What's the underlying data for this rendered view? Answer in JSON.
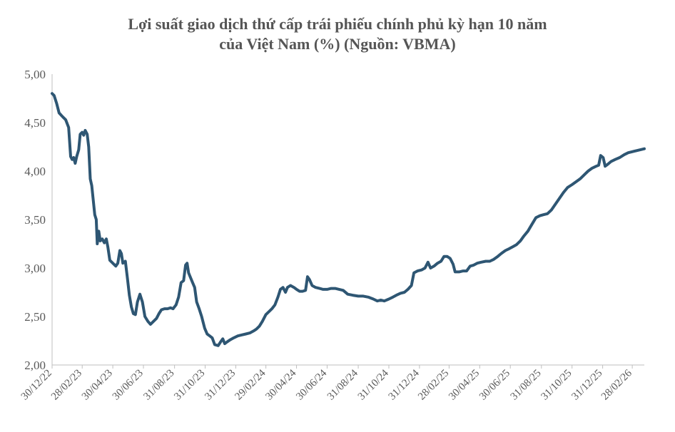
{
  "chart_data": {
    "type": "line",
    "title_line1": "Lợi suất giao dịch thứ cấp trái phiếu chính phủ kỳ hạn 10 năm",
    "title_line2": "của Việt Nam (%) (Nguồn: VBMA)",
    "xlabel": "",
    "ylabel": "",
    "ylim": [
      2.0,
      5.0
    ],
    "yticks": [
      "2,00",
      "2,50",
      "3,00",
      "3,50",
      "4,00",
      "4,50",
      "5,00"
    ],
    "ytick_values": [
      2.0,
      2.5,
      3.0,
      3.5,
      4.0,
      4.5,
      5.0
    ],
    "xticks": [
      "30/12/22",
      "28/02/23",
      "30/04/23",
      "30/06/23",
      "31/08/23",
      "31/10/23",
      "31/12/23",
      "29/02/24",
      "30/04/24",
      "30/06/24",
      "31/08/24",
      "31/10/24",
      "31/12/24",
      "28/02/25",
      "30/04/25",
      "30/06/25",
      "31/08/25",
      "31/10/25",
      "31/12/25",
      "28/02/26"
    ],
    "xtick_dates": [
      "2022-12-30",
      "2023-02-28",
      "2023-04-30",
      "2023-06-30",
      "2023-08-31",
      "2023-10-31",
      "2023-12-31",
      "2024-02-29",
      "2024-04-30",
      "2024-06-30",
      "2024-08-31",
      "2024-10-31",
      "2024-12-31",
      "2025-02-28",
      "2025-04-30",
      "2025-06-30",
      "2025-08-31",
      "2025-10-31",
      "2025-12-31",
      "2026-02-28"
    ],
    "grid": false,
    "line_color": "#2e5673",
    "series": [
      {
        "name": "",
        "points": [
          [
            "2022-12-30",
            4.8
          ],
          [
            "2023-01-03",
            4.78
          ],
          [
            "2023-01-08",
            4.7
          ],
          [
            "2023-01-13",
            4.6
          ],
          [
            "2023-01-20",
            4.56
          ],
          [
            "2023-01-26",
            4.53
          ],
          [
            "2023-02-01",
            4.45
          ],
          [
            "2023-02-05",
            4.15
          ],
          [
            "2023-02-08",
            4.12
          ],
          [
            "2023-02-11",
            4.14
          ],
          [
            "2023-02-14",
            4.08
          ],
          [
            "2023-02-17",
            4.15
          ],
          [
            "2023-02-21",
            4.22
          ],
          [
            "2023-02-24",
            4.38
          ],
          [
            "2023-02-28",
            4.4
          ],
          [
            "2023-03-03",
            4.37
          ],
          [
            "2023-03-06",
            4.42
          ],
          [
            "2023-03-10",
            4.38
          ],
          [
            "2023-03-13",
            4.25
          ],
          [
            "2023-03-16",
            3.92
          ],
          [
            "2023-03-19",
            3.85
          ],
          [
            "2023-03-22",
            3.7
          ],
          [
            "2023-03-25",
            3.55
          ],
          [
            "2023-03-28",
            3.5
          ],
          [
            "2023-03-30",
            3.25
          ],
          [
            "2023-04-02",
            3.38
          ],
          [
            "2023-04-05",
            3.28
          ],
          [
            "2023-04-09",
            3.3
          ],
          [
            "2023-04-13",
            3.26
          ],
          [
            "2023-04-17",
            3.3
          ],
          [
            "2023-04-20",
            3.22
          ],
          [
            "2023-04-24",
            3.08
          ],
          [
            "2023-04-30",
            3.05
          ],
          [
            "2023-05-06",
            3.02
          ],
          [
            "2023-05-10",
            3.05
          ],
          [
            "2023-05-14",
            3.18
          ],
          [
            "2023-05-17",
            3.15
          ],
          [
            "2023-05-20",
            3.05
          ],
          [
            "2023-05-25",
            3.07
          ],
          [
            "2023-05-29",
            2.9
          ],
          [
            "2023-06-02",
            2.72
          ],
          [
            "2023-06-06",
            2.6
          ],
          [
            "2023-06-10",
            2.53
          ],
          [
            "2023-06-14",
            2.52
          ],
          [
            "2023-06-18",
            2.65
          ],
          [
            "2023-06-23",
            2.73
          ],
          [
            "2023-06-28",
            2.65
          ],
          [
            "2023-07-03",
            2.5
          ],
          [
            "2023-07-09",
            2.45
          ],
          [
            "2023-07-14",
            2.42
          ],
          [
            "2023-07-20",
            2.45
          ],
          [
            "2023-07-26",
            2.48
          ],
          [
            "2023-07-31",
            2.53
          ],
          [
            "2023-08-05",
            2.57
          ],
          [
            "2023-08-11",
            2.58
          ],
          [
            "2023-08-17",
            2.58
          ],
          [
            "2023-08-23",
            2.59
          ],
          [
            "2023-08-28",
            2.58
          ],
          [
            "2023-09-03",
            2.62
          ],
          [
            "2023-09-08",
            2.7
          ],
          [
            "2023-09-13",
            2.85
          ],
          [
            "2023-09-18",
            2.87
          ],
          [
            "2023-09-22",
            3.03
          ],
          [
            "2023-09-25",
            3.05
          ],
          [
            "2023-09-28",
            2.95
          ],
          [
            "2023-10-02",
            2.9
          ],
          [
            "2023-10-06",
            2.85
          ],
          [
            "2023-10-10",
            2.8
          ],
          [
            "2023-10-14",
            2.65
          ],
          [
            "2023-10-19",
            2.58
          ],
          [
            "2023-10-24",
            2.5
          ],
          [
            "2023-10-30",
            2.38
          ],
          [
            "2023-11-04",
            2.32
          ],
          [
            "2023-11-09",
            2.3
          ],
          [
            "2023-11-14",
            2.28
          ],
          [
            "2023-11-19",
            2.21
          ],
          [
            "2023-11-26",
            2.2
          ],
          [
            "2023-12-01",
            2.24
          ],
          [
            "2023-12-05",
            2.27
          ],
          [
            "2023-12-09",
            2.22
          ],
          [
            "2023-12-14",
            2.24
          ],
          [
            "2023-12-20",
            2.26
          ],
          [
            "2023-12-27",
            2.28
          ],
          [
            "2024-01-04",
            2.3
          ],
          [
            "2024-01-12",
            2.31
          ],
          [
            "2024-01-20",
            2.32
          ],
          [
            "2024-01-28",
            2.33
          ],
          [
            "2024-02-04",
            2.35
          ],
          [
            "2024-02-10",
            2.37
          ],
          [
            "2024-02-16",
            2.4
          ],
          [
            "2024-02-22",
            2.45
          ],
          [
            "2024-02-29",
            2.52
          ],
          [
            "2024-03-06",
            2.55
          ],
          [
            "2024-03-12",
            2.58
          ],
          [
            "2024-03-18",
            2.62
          ],
          [
            "2024-03-24",
            2.7
          ],
          [
            "2024-03-29",
            2.78
          ],
          [
            "2024-04-03",
            2.8
          ],
          [
            "2024-04-08",
            2.75
          ],
          [
            "2024-04-12",
            2.8
          ],
          [
            "2024-04-18",
            2.82
          ],
          [
            "2024-04-25",
            2.8
          ],
          [
            "2024-04-30",
            2.78
          ],
          [
            "2024-05-06",
            2.76
          ],
          [
            "2024-05-12",
            2.76
          ],
          [
            "2024-05-18",
            2.77
          ],
          [
            "2024-05-22",
            2.91
          ],
          [
            "2024-05-26",
            2.88
          ],
          [
            "2024-05-31",
            2.82
          ],
          [
            "2024-06-07",
            2.8
          ],
          [
            "2024-06-15",
            2.79
          ],
          [
            "2024-06-22",
            2.78
          ],
          [
            "2024-06-30",
            2.78
          ],
          [
            "2024-07-08",
            2.79
          ],
          [
            "2024-07-16",
            2.79
          ],
          [
            "2024-07-24",
            2.78
          ],
          [
            "2024-08-01",
            2.77
          ],
          [
            "2024-08-10",
            2.73
          ],
          [
            "2024-08-20",
            2.72
          ],
          [
            "2024-08-31",
            2.71
          ],
          [
            "2024-09-10",
            2.71
          ],
          [
            "2024-09-20",
            2.7
          ],
          [
            "2024-09-30",
            2.68
          ],
          [
            "2024-10-08",
            2.66
          ],
          [
            "2024-10-15",
            2.67
          ],
          [
            "2024-10-22",
            2.66
          ],
          [
            "2024-10-31",
            2.68
          ],
          [
            "2024-11-08",
            2.7
          ],
          [
            "2024-11-15",
            2.72
          ],
          [
            "2024-11-23",
            2.74
          ],
          [
            "2024-12-01",
            2.75
          ],
          [
            "2024-12-08",
            2.78
          ],
          [
            "2024-12-15",
            2.82
          ],
          [
            "2024-12-20",
            2.95
          ],
          [
            "2024-12-27",
            2.97
          ],
          [
            "2025-01-04",
            2.98
          ],
          [
            "2025-01-11",
            3.0
          ],
          [
            "2025-01-17",
            3.06
          ],
          [
            "2025-01-22",
            3.0
          ],
          [
            "2025-01-29",
            3.02
          ],
          [
            "2025-02-05",
            3.05
          ],
          [
            "2025-02-12",
            3.07
          ],
          [
            "2025-02-18",
            3.12
          ],
          [
            "2025-02-24",
            3.12
          ],
          [
            "2025-03-02",
            3.1
          ],
          [
            "2025-03-08",
            3.04
          ],
          [
            "2025-03-12",
            2.96
          ],
          [
            "2025-03-20",
            2.96
          ],
          [
            "2025-03-28",
            2.97
          ],
          [
            "2025-04-04",
            2.97
          ],
          [
            "2025-04-11",
            3.02
          ],
          [
            "2025-04-18",
            3.03
          ],
          [
            "2025-04-25",
            3.05
          ],
          [
            "2025-05-03",
            3.06
          ],
          [
            "2025-05-12",
            3.07
          ],
          [
            "2025-05-20",
            3.07
          ],
          [
            "2025-05-28",
            3.09
          ],
          [
            "2025-06-05",
            3.12
          ],
          [
            "2025-06-12",
            3.15
          ],
          [
            "2025-06-20",
            3.18
          ],
          [
            "2025-06-28",
            3.2
          ],
          [
            "2025-07-05",
            3.22
          ],
          [
            "2025-07-12",
            3.24
          ],
          [
            "2025-07-20",
            3.28
          ],
          [
            "2025-07-27",
            3.33
          ],
          [
            "2025-08-04",
            3.38
          ],
          [
            "2025-08-12",
            3.45
          ],
          [
            "2025-08-20",
            3.52
          ],
          [
            "2025-08-28",
            3.54
          ],
          [
            "2025-09-04",
            3.55
          ],
          [
            "2025-09-12",
            3.56
          ],
          [
            "2025-09-20",
            3.6
          ],
          [
            "2025-09-28",
            3.66
          ],
          [
            "2025-10-06",
            3.72
          ],
          [
            "2025-10-14",
            3.78
          ],
          [
            "2025-10-22",
            3.83
          ],
          [
            "2025-10-31",
            3.86
          ],
          [
            "2025-11-08",
            3.89
          ],
          [
            "2025-11-16",
            3.92
          ],
          [
            "2025-11-24",
            3.96
          ],
          [
            "2025-12-02",
            4.0
          ],
          [
            "2025-12-10",
            4.03
          ],
          [
            "2025-12-18",
            4.05
          ],
          [
            "2025-12-23",
            4.06
          ],
          [
            "2025-12-27",
            4.16
          ],
          [
            "2026-01-01",
            4.14
          ],
          [
            "2026-01-05",
            4.05
          ],
          [
            "2026-01-10",
            4.07
          ],
          [
            "2026-01-17",
            4.1
          ],
          [
            "2026-01-25",
            4.12
          ],
          [
            "2026-02-03",
            4.14
          ],
          [
            "2026-02-12",
            4.17
          ],
          [
            "2026-02-20",
            4.19
          ],
          [
            "2026-02-28",
            4.2
          ],
          [
            "2026-03-08",
            4.21
          ],
          [
            "2026-03-16",
            4.22
          ],
          [
            "2026-03-24",
            4.23
          ]
        ]
      }
    ]
  }
}
